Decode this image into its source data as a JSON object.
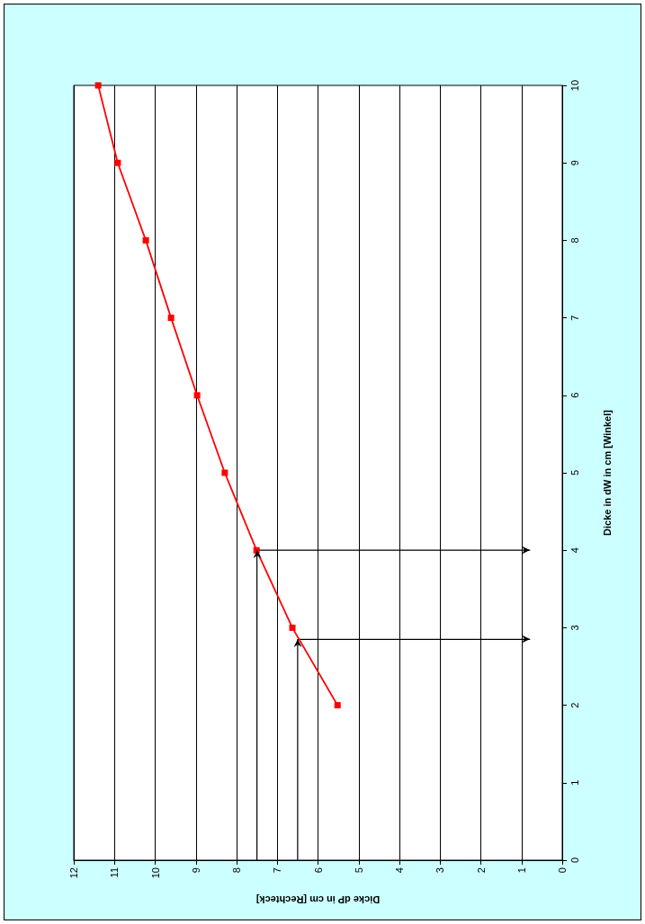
{
  "chart_data": {
    "type": "line",
    "xlabel": "Dicke dP in cm [Rechteck]",
    "ylabel": "Dicke in dW in cm [Winkel]",
    "xlim": [
      12,
      0
    ],
    "xticks": [
      12,
      11,
      10,
      9,
      8,
      7,
      6,
      5,
      4,
      3,
      2,
      1,
      0
    ],
    "ylim": [
      0,
      10
    ],
    "yticks": [
      0,
      1,
      2,
      3,
      4,
      5,
      6,
      7,
      8,
      9,
      10
    ],
    "grid": "x",
    "series": [
      {
        "color": "#ff0000",
        "marker": "square",
        "x": [
          5.52,
          6.63,
          7.51,
          8.29,
          8.97,
          9.61,
          10.23,
          10.92,
          11.4
        ],
        "values": [
          2,
          3,
          4,
          5,
          6,
          7,
          8,
          9,
          10
        ]
      },
      {
        "color": "#000000",
        "marker": "none",
        "x": [
          6.5,
          6.5,
          0.8
        ],
        "values": [
          0,
          2.85,
          2.85
        ]
      },
      {
        "color": "#000000",
        "marker": "none",
        "x": [
          7.5,
          7.5,
          0.8
        ],
        "values": [
          0,
          4,
          4
        ]
      }
    ]
  }
}
